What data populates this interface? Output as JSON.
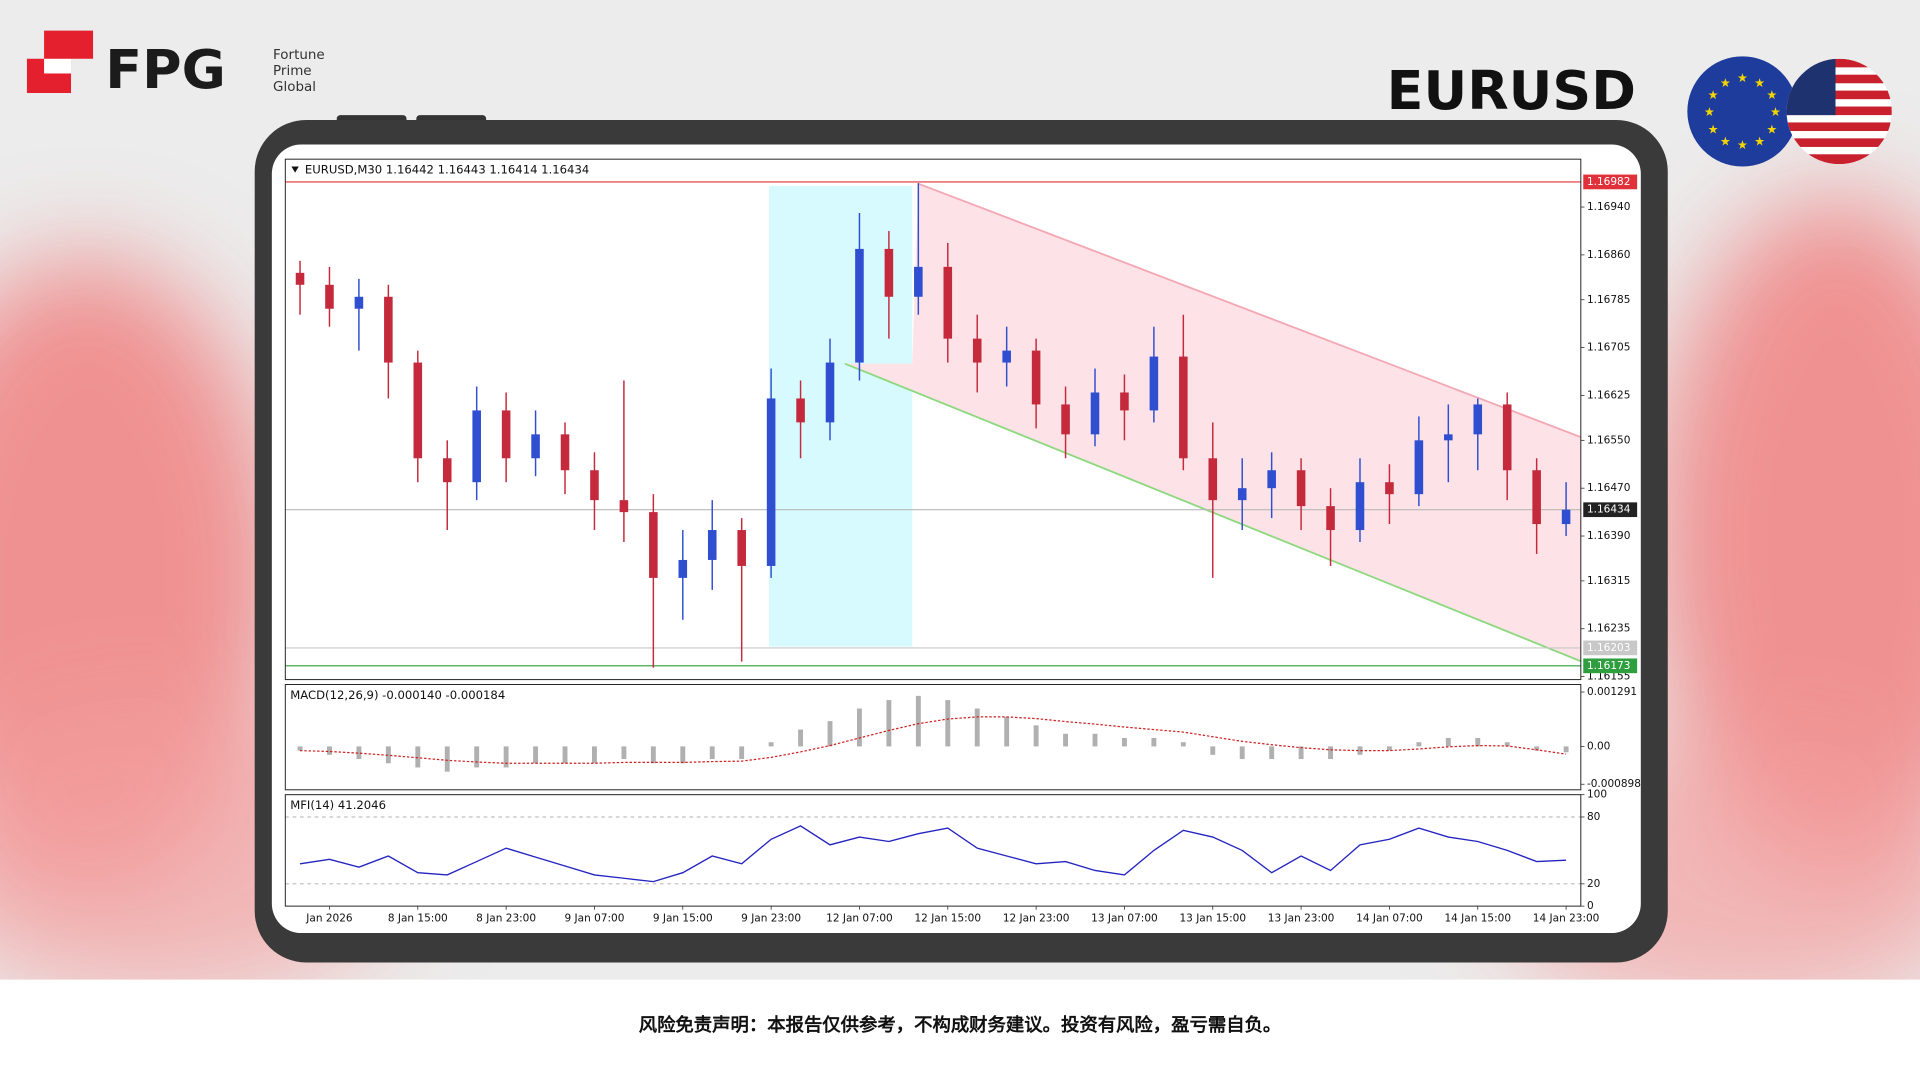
{
  "header": {
    "logo": "FPG",
    "logo_sub": [
      "Fortune",
      "Prime",
      "Global"
    ],
    "symbol": "EURUSD"
  },
  "chart_data": [
    {
      "type": "candlestick",
      "title": "EURUSD,M30 1.16442 1.16443 1.16414 1.16434",
      "categories": [
        null,
        "Jan 2026",
        null,
        null,
        "8 Jan 15:00",
        null,
        null,
        "8 Jan 23:00",
        null,
        null,
        "9 Jan 07:00",
        null,
        null,
        "9 Jan 15:00",
        null,
        null,
        "9 Jan 23:00",
        null,
        null,
        "12 Jan 07:00",
        null,
        null,
        "12 Jan 15:00",
        null,
        null,
        "12 Jan 23:00",
        null,
        null,
        "13 Jan 07:00",
        null,
        null,
        "13 Jan 15:00",
        null,
        null,
        "13 Jan 23:00",
        null,
        null,
        "14 Jan 07:00",
        null,
        null,
        "14 Jan 15:00",
        null,
        null,
        "14 Jan 23:00"
      ],
      "open": [
        1.1683,
        1.1681,
        1.1677,
        1.1679,
        1.1668,
        1.1652,
        1.1648,
        1.166,
        1.1652,
        1.1656,
        1.165,
        1.1645,
        1.1643,
        1.1632,
        1.1635,
        1.164,
        1.1634,
        1.1662,
        1.1658,
        1.1668,
        1.1687,
        1.1679,
        1.1684,
        1.1672,
        1.1668,
        1.167,
        1.1661,
        1.1656,
        1.1663,
        1.166,
        1.1669,
        1.1652,
        1.1645,
        1.1647,
        1.165,
        1.1644,
        1.164,
        1.1648,
        1.1646,
        1.1655,
        1.1656,
        1.1661,
        1.165,
        1.1641
      ],
      "high": [
        1.1685,
        1.1684,
        1.1682,
        1.1681,
        1.167,
        1.1655,
        1.1664,
        1.1663,
        1.166,
        1.1658,
        1.1653,
        1.1665,
        1.1646,
        1.164,
        1.1645,
        1.1642,
        1.1667,
        1.1665,
        1.1672,
        1.1693,
        1.169,
        1.1698,
        1.1688,
        1.1676,
        1.1674,
        1.1672,
        1.1664,
        1.1667,
        1.1666,
        1.1674,
        1.1676,
        1.1658,
        1.1652,
        1.1653,
        1.1652,
        1.1647,
        1.1652,
        1.1651,
        1.1659,
        1.1661,
        1.1662,
        1.1663,
        1.1652,
        1.1648
      ],
      "low": [
        1.1676,
        1.1674,
        1.167,
        1.1662,
        1.1648,
        1.164,
        1.1645,
        1.1648,
        1.1649,
        1.1646,
        1.164,
        1.1638,
        1.1617,
        1.1625,
        1.163,
        1.1618,
        1.1632,
        1.1652,
        1.1655,
        1.1665,
        1.1672,
        1.1676,
        1.1668,
        1.1663,
        1.1664,
        1.1657,
        1.1652,
        1.1654,
        1.1655,
        1.1658,
        1.165,
        1.1632,
        1.164,
        1.1642,
        1.164,
        1.1634,
        1.1638,
        1.1641,
        1.1644,
        1.1648,
        1.165,
        1.1645,
        1.1636,
        1.1639
      ],
      "close": [
        1.1681,
        1.1677,
        1.1679,
        1.1668,
        1.1652,
        1.1648,
        1.166,
        1.1652,
        1.1656,
        1.165,
        1.1645,
        1.1643,
        1.1632,
        1.1635,
        1.164,
        1.1634,
        1.1662,
        1.1658,
        1.1668,
        1.1687,
        1.1679,
        1.1684,
        1.1672,
        1.1668,
        1.167,
        1.1661,
        1.1656,
        1.1663,
        1.166,
        1.1669,
        1.1652,
        1.1645,
        1.1647,
        1.165,
        1.1644,
        1.164,
        1.1648,
        1.1646,
        1.1655,
        1.1656,
        1.1661,
        1.165,
        1.1641,
        1.16434
      ],
      "up_color": "#2f4fd0",
      "down_color": "#c42a3c",
      "ylim": [
        1.1615,
        1.1702
      ],
      "yticks": [
        {
          "value": 1.1694,
          "label": "1.16940"
        },
        {
          "value": 1.1686,
          "label": "1.16860"
        },
        {
          "value": 1.16785,
          "label": "1.16785"
        },
        {
          "value": 1.16705,
          "label": "1.16705"
        },
        {
          "value": 1.16625,
          "label": "1.16625"
        },
        {
          "value": 1.1655,
          "label": "1.16550"
        },
        {
          "value": 1.1647,
          "label": "1.16470"
        },
        {
          "value": 1.1639,
          "label": "1.16390"
        },
        {
          "value": 1.16315,
          "label": "1.16315"
        },
        {
          "value": 1.16235,
          "label": "1.16235"
        },
        {
          "value": 1.16155,
          "label": "1.16155"
        }
      ],
      "levels": [
        1.16982,
        1.16434,
        1.16203,
        1.16173
      ],
      "level_colors": [
        "#e0303a",
        "#222222",
        "#c8c8c8",
        "#2e9e3e"
      ],
      "grid": false
    },
    {
      "type": "macd",
      "title": "MACD(12,26,9) -0.000140 -0.000184",
      "values": [
        -0.0001,
        -0.0002,
        -0.0003,
        -0.0004,
        -0.0005,
        -0.0006,
        -0.0005,
        -0.0005,
        -0.0004,
        -0.0004,
        -0.0004,
        -0.0003,
        -0.0004,
        -0.0004,
        -0.0003,
        -0.0003,
        0.0001,
        0.0004,
        0.0006,
        0.0009,
        0.0011,
        0.0012,
        0.0011,
        0.0009,
        0.0007,
        0.0005,
        0.0003,
        0.0003,
        0.0002,
        0.0002,
        0.0001,
        -0.0002,
        -0.0003,
        -0.0003,
        -0.0003,
        -0.0003,
        -0.0002,
        -0.0001,
        0.0001,
        0.0002,
        0.0002,
        0.0001,
        -0.0001,
        -0.00014
      ],
      "signal": [
        -0.0001,
        -0.00012,
        -0.00016,
        -0.00021,
        -0.00027,
        -0.00033,
        -0.00037,
        -0.0004,
        -0.0004,
        -0.0004,
        -0.0004,
        -0.00038,
        -0.00038,
        -0.00038,
        -0.00036,
        -0.00035,
        -0.00026,
        -0.00013,
        2e-05,
        0.0002,
        0.00038,
        0.00054,
        0.00065,
        0.0007,
        0.0007,
        0.00066,
        0.00059,
        0.00053,
        0.00046,
        0.0004,
        0.00034,
        0.00023,
        0.00012,
        4e-05,
        -3e-05,
        -8e-05,
        -0.0001,
        -0.0001,
        -6e-05,
        -1e-05,
        2e-05,
        1e-05,
        -8e-05,
        -0.000184
      ],
      "color": "#b0b0b0",
      "signal_color": "#d02020",
      "ylim": [
        -0.00103,
        0.00147
      ],
      "yticks": [
        0.001291,
        {
          "value": 0,
          "label": "0.00"
        },
        -0.000898
      ],
      "grid": false
    },
    {
      "type": "line",
      "title": "MFI(14) 41.2046",
      "values": [
        38,
        42,
        35,
        45,
        30,
        28,
        40,
        52,
        44,
        36,
        28,
        25,
        22,
        30,
        45,
        38,
        60,
        72,
        55,
        62,
        58,
        65,
        70,
        52,
        45,
        38,
        40,
        32,
        28,
        50,
        68,
        62,
        50,
        30,
        45,
        32,
        55,
        60,
        70,
        62,
        58,
        50,
        40,
        41.2046
      ],
      "color": "#2424c0",
      "ylim": [
        0,
        100
      ],
      "yticks": [
        100,
        80,
        20,
        0
      ],
      "grid": true
    }
  ],
  "footer": {
    "disclaimer": "风险免责声明：本报告仅供参考，不构成财务建议。投资有风险，盈亏需自负。"
  }
}
